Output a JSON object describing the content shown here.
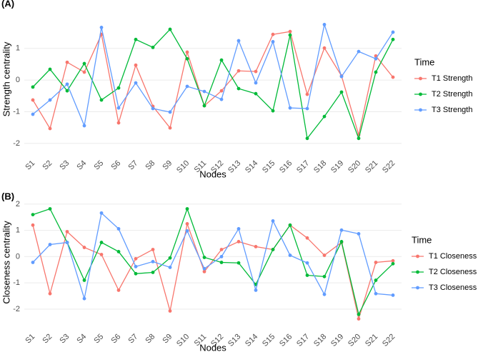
{
  "chart_data": [
    {
      "type": "line",
      "title": "(A)",
      "x_label": "Nodes",
      "y_label": "Strength centrality",
      "legend_title": "Time",
      "legend": "right",
      "grid": true,
      "categories": [
        "S1",
        "S2",
        "S3",
        "S4",
        "S5",
        "S6",
        "S7",
        "S8",
        "S9",
        "S10",
        "S11",
        "S12",
        "S13",
        "S14",
        "S15",
        "S16",
        "S17",
        "S18",
        "S19",
        "S20",
        "S21",
        "S22"
      ],
      "ylim": [
        -2.25,
        2.3
      ],
      "yticks": [
        -2,
        -1,
        0,
        1
      ],
      "series": [
        {
          "name": "T1 Strength",
          "color": "#F8766D",
          "values": [
            -0.63,
            -1.53,
            0.56,
            0.25,
            1.44,
            -1.35,
            0.47,
            -0.83,
            -1.51,
            0.88,
            -0.81,
            -0.34,
            0.29,
            0.27,
            1.44,
            1.53,
            -0.45,
            1.01,
            0.13,
            -1.73,
            0.76,
            0.09
          ]
        },
        {
          "name": "T2 Strength",
          "color": "#00BA38",
          "values": [
            -0.22,
            0.34,
            -0.34,
            0.52,
            -0.63,
            -0.25,
            1.28,
            1.03,
            1.6,
            0.67,
            -0.81,
            0.63,
            -0.27,
            -0.43,
            -0.97,
            1.42,
            -1.84,
            -1.15,
            -0.38,
            -1.84,
            0.25,
            1.28
          ]
        },
        {
          "name": "T3 Strength",
          "color": "#619CFF",
          "values": [
            -1.08,
            -0.63,
            -0.13,
            -1.44,
            1.66,
            -0.88,
            -0.09,
            -0.9,
            -1.01,
            -0.2,
            -0.36,
            -0.61,
            1.24,
            -0.09,
            1.21,
            -0.88,
            -0.9,
            1.75,
            0.11,
            0.9,
            0.67,
            1.51
          ]
        }
      ]
    },
    {
      "type": "line",
      "title": "(B)",
      "x_label": "Nodes",
      "y_label": "Closeness centrality",
      "legend_title": "Time",
      "legend": "right",
      "grid": true,
      "categories": [
        "S1",
        "S2",
        "S3",
        "S4",
        "S5",
        "S6",
        "S7",
        "S8",
        "S9",
        "S10",
        "S11",
        "S12",
        "S13",
        "S14",
        "S15",
        "S16",
        "S17",
        "S18",
        "S19",
        "S20",
        "S21",
        "S22"
      ],
      "ylim": [
        -2.6,
        2.16
      ],
      "yticks": [
        -2,
        -1,
        0,
        1,
        2
      ],
      "series": [
        {
          "name": "T1 Closeness",
          "color": "#F8766D",
          "values": [
            1.2,
            -1.41,
            0.95,
            0.35,
            0.08,
            -1.28,
            -0.08,
            0.27,
            -2.07,
            1.25,
            -0.57,
            0.27,
            0.57,
            0.38,
            0.27,
            1.2,
            0.71,
            0.05,
            0.54,
            -2.37,
            -0.22,
            -0.16
          ]
        },
        {
          "name": "T2 Closeness",
          "color": "#00BA38",
          "values": [
            1.6,
            1.82,
            0.54,
            -0.9,
            0.54,
            0.19,
            -0.65,
            -0.6,
            -0.05,
            1.82,
            -0.03,
            -0.22,
            -0.24,
            -1.06,
            0.27,
            1.2,
            -0.71,
            -0.76,
            0.57,
            -2.2,
            -0.9,
            -0.27
          ]
        },
        {
          "name": "T3 Closeness",
          "color": "#619CFF",
          "values": [
            -0.22,
            0.46,
            0.54,
            -1.6,
            1.66,
            1.06,
            -0.38,
            -0.19,
            -0.41,
            0.98,
            -0.46,
            0,
            1.06,
            -1.28,
            1.36,
            0.05,
            -0.24,
            -1.44,
            1.01,
            0.87,
            -1.41,
            -1.47
          ]
        }
      ]
    }
  ]
}
